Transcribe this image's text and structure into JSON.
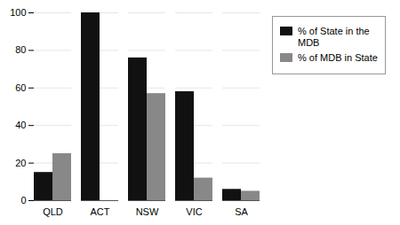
{
  "chart_data": {
    "type": "bar",
    "categories": [
      "QLD",
      "ACT",
      "NSW",
      "VIC",
      "SA"
    ],
    "series": [
      {
        "name": "% of State in the\nMDB",
        "color": "#111111",
        "values": [
          15,
          100,
          76,
          58,
          6
        ]
      },
      {
        "name": "% of MDB in State",
        "color": "#888888",
        "values": [
          25,
          0,
          57,
          12,
          5
        ]
      }
    ],
    "ylim": [
      0,
      100
    ],
    "yticks": [
      0,
      20,
      40,
      60,
      80,
      100
    ],
    "grid": true,
    "legend": "right"
  }
}
